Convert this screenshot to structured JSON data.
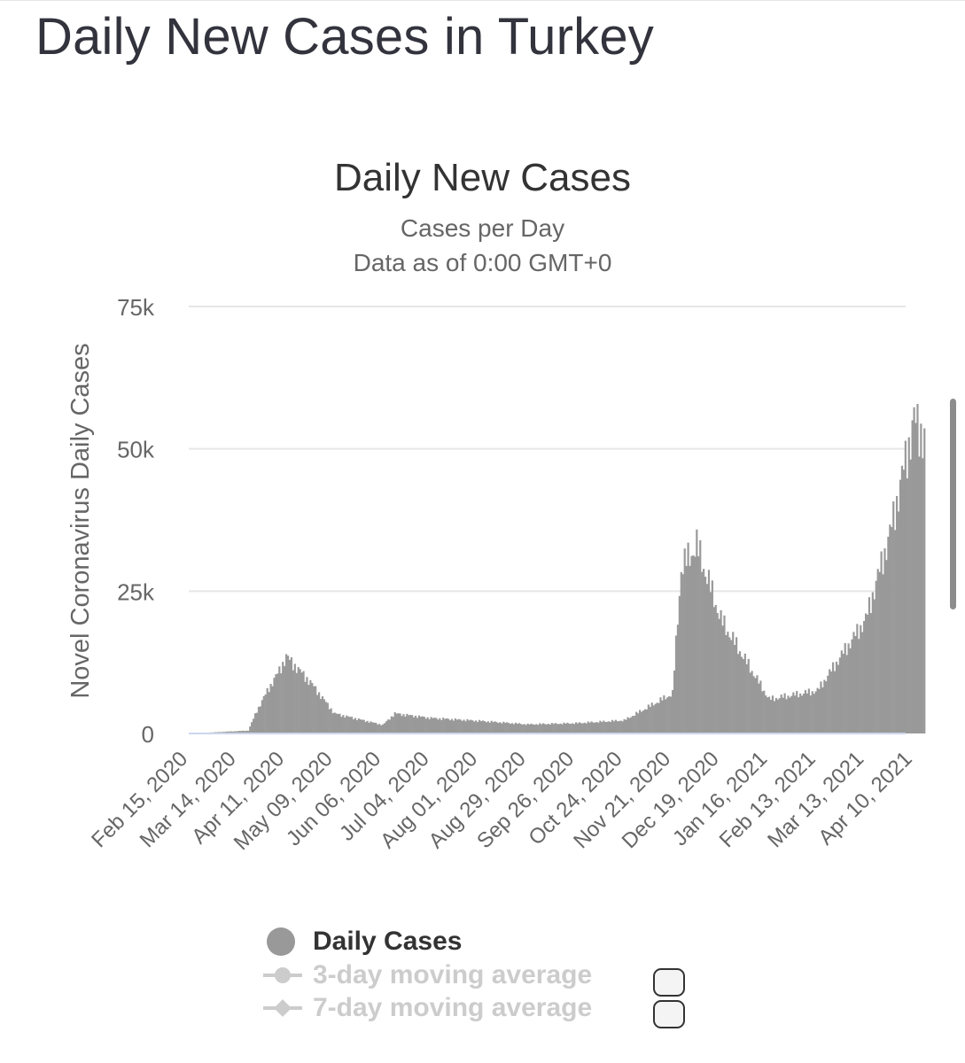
{
  "page": {
    "title": "Daily New Cases in Turkey"
  },
  "chart_data": {
    "type": "bar",
    "title": "Daily New Cases",
    "subtitle_lines": [
      "Cases per Day",
      "Data as of 0:00 GMT+0"
    ],
    "ylabel": "Novel Coronavirus Daily Cases",
    "ylim": [
      0,
      75000
    ],
    "ytick_values": [
      0,
      25000,
      50000,
      75000
    ],
    "ytick_labels": [
      "0",
      "25k",
      "50k",
      "75k"
    ],
    "xtick_labels": [
      "Feb 15, 2020",
      "Mar 14, 2020",
      "Apr 11, 2020",
      "May 09, 2020",
      "Jun 06, 2020",
      "Jul 04, 2020",
      "Aug 01, 2020",
      "Aug 29, 2020",
      "Sep 26, 2020",
      "Oct 24, 2020",
      "Nov 21, 2020",
      "Dec 19, 2020",
      "Jan 16, 2021",
      "Feb 13, 2021",
      "Mar 13, 2021",
      "Apr 10, 2021"
    ],
    "days_between_ticks": 28,
    "series": [
      {
        "name": "Daily Cases",
        "color": "#999999",
        "start_date": "Feb 15, 2020",
        "end_date": "Apr 16, 2021",
        "approx_values_by_period": [
          {
            "from": "Feb 15, 2020",
            "to": "Mar 10, 2020",
            "value": 0
          },
          {
            "from": "Mar 20, 2020",
            "value": 500
          },
          {
            "from": "Mar 25, 2020",
            "value": 4000
          },
          {
            "from": "Apr 01, 2020",
            "value": 8000
          },
          {
            "from": "Apr 07, 2020",
            "value": 11000
          },
          {
            "from": "Apr 11, 2020",
            "value": 13500
          },
          {
            "from": "Apr 25, 2020",
            "value": 9000
          },
          {
            "from": "May 09, 2020",
            "value": 3500
          },
          {
            "from": "Jun 06, 2020",
            "value": 1500
          },
          {
            "from": "Jun 13, 2020",
            "value": 3500
          },
          {
            "from": "Jul 04, 2020",
            "value": 2700
          },
          {
            "from": "Aug 01, 2020",
            "value": 2200
          },
          {
            "from": "Aug 29, 2020",
            "value": 1600
          },
          {
            "from": "Sep 26, 2020",
            "value": 1800
          },
          {
            "from": "Oct 24, 2020",
            "value": 2300
          },
          {
            "from": "Nov 21, 2020",
            "value": 7000
          },
          {
            "from": "Nov 26, 2020",
            "value": 29000
          },
          {
            "from": "Dec 05, 2020",
            "value": 33000
          },
          {
            "from": "Dec 19, 2020",
            "value": 20000
          },
          {
            "from": "Jan 16, 2021",
            "value": 6000
          },
          {
            "from": "Feb 13, 2021",
            "value": 7500
          },
          {
            "from": "Mar 13, 2021",
            "value": 20000
          },
          {
            "from": "Mar 27, 2021",
            "value": 35000
          },
          {
            "from": "Apr 10, 2021",
            "value": 55000
          },
          {
            "to": "Apr 16, 2021",
            "value": 52000
          }
        ]
      },
      {
        "name": "3-day moving average",
        "visible": false
      },
      {
        "name": "7-day moving average",
        "visible": false
      }
    ],
    "legend_position": "bottom-center"
  },
  "legend": {
    "items": [
      {
        "label": "Daily Cases",
        "active": true
      },
      {
        "label": "3-day moving average",
        "active": false
      },
      {
        "label": "7-day moving average",
        "active": false
      }
    ]
  },
  "colors": {
    "bar": "#999999",
    "baseline": "#ccd6eb",
    "grid": "#e6e6e6",
    "legend_active": "#333333",
    "legend_inactive": "#cccccc"
  }
}
